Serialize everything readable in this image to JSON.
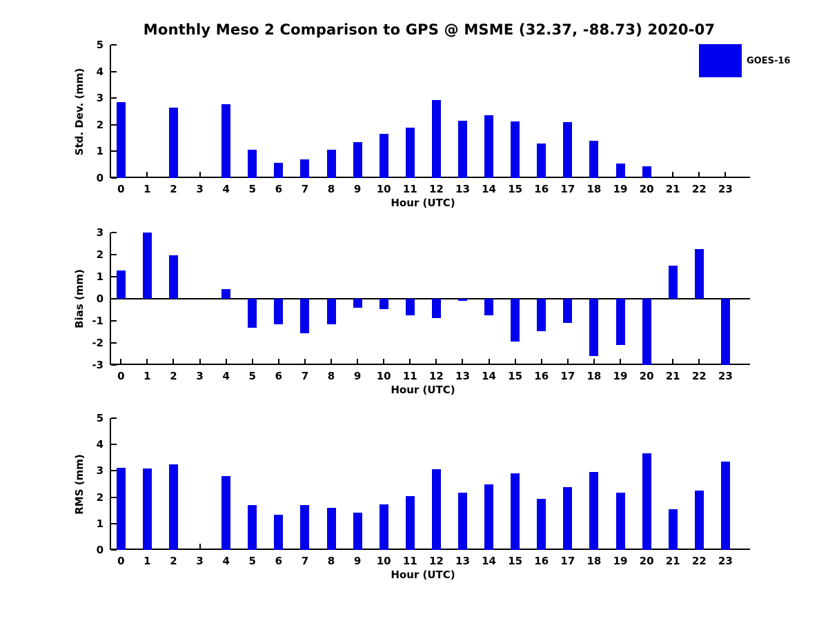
{
  "figure": {
    "title": "Monthly Meso 2 Comparison to GPS @ MSME (32.37, -88.73) 2020-07",
    "legend": {
      "label": "GOES-16",
      "color": "#0000ee"
    },
    "background_color": "#ffffff",
    "text_color": "#000000"
  },
  "chart_data": [
    {
      "type": "bar",
      "series_name": "GOES-16",
      "xlabel": "Hour (UTC)",
      "ylabel": "Std. Dev. (mm)",
      "ylim": [
        0,
        5
      ],
      "yticks": [
        0,
        1,
        2,
        3,
        4,
        5
      ],
      "grid": false,
      "legend_position": "top-right-outside",
      "bar_color": "#0000ee",
      "categories": [
        0,
        1,
        2,
        3,
        4,
        5,
        6,
        7,
        8,
        9,
        10,
        11,
        12,
        13,
        14,
        15,
        16,
        17,
        18,
        19,
        20,
        21,
        22,
        23
      ],
      "values": [
        2.84,
        0,
        2.63,
        0,
        2.77,
        1.06,
        0.58,
        0.69,
        1.06,
        1.35,
        1.67,
        1.88,
        2.93,
        2.14,
        2.37,
        2.13,
        1.3,
        2.1,
        1.39,
        0.54,
        0.44,
        0,
        0,
        0
      ]
    },
    {
      "type": "bar",
      "series_name": "GOES-16",
      "xlabel": "Hour (UTC)",
      "ylabel": "Bias (mm)",
      "ylim": [
        -3,
        3
      ],
      "yticks": [
        -3,
        -2,
        -1,
        0,
        1,
        2,
        3
      ],
      "grid": false,
      "bar_color": "#0000ee",
      "categories": [
        0,
        1,
        2,
        3,
        4,
        5,
        6,
        7,
        8,
        9,
        10,
        11,
        12,
        13,
        14,
        15,
        16,
        17,
        18,
        19,
        20,
        21,
        22,
        23
      ],
      "values": [
        1.27,
        3.0,
        1.96,
        0,
        0.44,
        -1.31,
        -1.17,
        -1.56,
        -1.17,
        -0.42,
        -0.46,
        -0.76,
        -0.89,
        -0.1,
        -0.74,
        -1.93,
        -1.46,
        -1.09,
        -2.6,
        -2.08,
        -3.0,
        1.51,
        2.26,
        -3.0
      ]
    },
    {
      "type": "bar",
      "series_name": "GOES-16",
      "xlabel": "Hour (UTC)",
      "ylabel": "RMS (mm)",
      "ylim": [
        0,
        5
      ],
      "yticks": [
        0,
        1,
        2,
        3,
        4,
        5
      ],
      "grid": false,
      "bar_color": "#0000ee",
      "categories": [
        0,
        1,
        2,
        3,
        4,
        5,
        6,
        7,
        8,
        9,
        10,
        11,
        12,
        13,
        14,
        15,
        16,
        17,
        18,
        19,
        20,
        21,
        22,
        23
      ],
      "values": [
        3.12,
        3.08,
        3.25,
        0,
        2.81,
        1.71,
        1.34,
        1.71,
        1.59,
        1.41,
        1.74,
        2.03,
        3.06,
        2.16,
        2.49,
        2.9,
        1.95,
        2.37,
        2.95,
        2.16,
        3.67,
        1.55,
        2.26,
        3.36
      ]
    }
  ]
}
